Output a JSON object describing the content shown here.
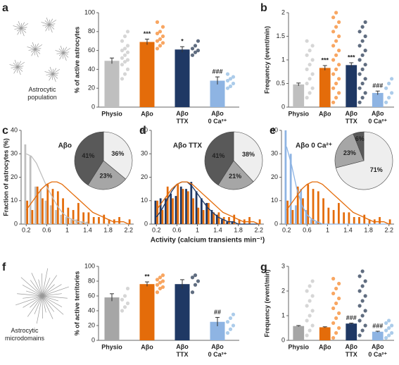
{
  "chart_data": [
    {
      "type": "bar",
      "panel": "a",
      "ylabel": "% of active astrocytes",
      "image_label": "Astrocytic\npopulation",
      "categories": [
        "Physio",
        "Aβo",
        "Aβo\nTTX",
        "Aβo\n0 Ca²⁺"
      ],
      "values": [
        49,
        69,
        61,
        28
      ],
      "errors": [
        3,
        3,
        3,
        4
      ],
      "annotations": [
        null,
        "***",
        "*",
        "###"
      ],
      "colors": [
        "#bfbfbf",
        "#e46c0a",
        "#1f3864",
        "#8eb4e3"
      ],
      "dot_colors": [
        "#cfcfcf",
        "#f79646",
        "#44546a",
        "#9dc3e6"
      ],
      "points": [
        [
          30,
          35,
          40,
          45,
          48,
          50,
          52,
          55,
          58,
          60,
          62,
          65,
          70,
          75,
          80
        ],
        [
          62,
          65,
          68,
          70,
          72,
          75,
          78,
          80,
          85,
          90
        ],
        [
          55,
          58,
          60,
          62,
          65,
          70
        ],
        [
          20,
          22,
          25,
          28,
          30,
          32,
          35
        ]
      ],
      "ylim": [
        0,
        100
      ],
      "yticks": [
        0,
        20,
        40,
        60,
        80,
        100
      ]
    },
    {
      "type": "bar",
      "panel": "b",
      "ylabel": "Frequency (event/min)",
      "categories": [
        "Physio",
        "Aβo",
        "Aβo\nTTX",
        "Aβo\n0 Ca²⁺"
      ],
      "values": [
        0.48,
        0.83,
        0.89,
        0.3
      ],
      "errors": [
        0.03,
        0.05,
        0.05,
        0.04
      ],
      "annotations": [
        null,
        "***",
        "***",
        "###"
      ],
      "colors": [
        "#bfbfbf",
        "#e46c0a",
        "#1f3864",
        "#8eb4e3"
      ],
      "dot_colors": [
        "#cfcfcf",
        "#f79646",
        "#44546a",
        "#9dc3e6"
      ],
      "points": [
        [
          0.2,
          0.3,
          0.4,
          0.5,
          0.6,
          0.7,
          0.8,
          0.9,
          1,
          1.1,
          1.2,
          1.3,
          1.4
        ],
        [
          0.1,
          0.2,
          0.3,
          0.4,
          0.5,
          0.6,
          0.7,
          0.8,
          0.9,
          1,
          1.1,
          1.2,
          1.3,
          1.4,
          1.5,
          1.6,
          1.7,
          1.8,
          1.9,
          2
        ],
        [
          0.1,
          0.2,
          0.3,
          0.4,
          0.5,
          0.6,
          0.7,
          0.8,
          0.9,
          1,
          1.1,
          1.2,
          1.3,
          1.4,
          1.5,
          1.6,
          1.7,
          1.8
        ],
        [
          0.1,
          0.2,
          0.3,
          0.4,
          0.5,
          0.6
        ]
      ],
      "ylim": [
        0,
        2
      ],
      "yticks": [
        0,
        0.5,
        1,
        1.5,
        2
      ]
    },
    {
      "type": "distribution",
      "panel": "c",
      "title": "Aβo",
      "title_color": "#e46c0a",
      "ylabel": "Fraction of astrocytes (%)",
      "x": [
        0.2,
        0.3,
        0.4,
        0.5,
        0.6,
        0.7,
        0.8,
        0.9,
        1,
        1.1,
        1.2,
        1.3,
        1.4,
        1.5,
        1.6,
        1.7,
        1.8,
        1.9,
        2,
        2.1,
        2.2
      ],
      "series": [
        {
          "color": "#bfbfbf",
          "values": [
            34,
            29,
            16,
            15,
            10,
            8,
            6,
            4,
            3,
            2,
            2,
            1,
            1,
            0,
            0,
            0,
            0,
            0,
            0,
            0,
            0
          ],
          "fit": [
            30,
            29,
            26,
            21,
            16,
            12,
            8,
            5,
            3,
            2,
            1,
            1,
            0,
            0,
            0,
            0,
            0,
            0,
            0,
            0,
            0
          ]
        },
        {
          "color": "#e46c0a",
          "values": [
            10,
            6,
            16,
            11,
            17,
            15,
            14,
            11,
            7,
            6,
            9,
            5,
            5,
            3,
            3,
            4,
            2,
            2,
            3,
            0,
            2
          ],
          "fit": [
            6,
            9,
            12,
            15,
            17,
            18,
            18,
            17,
            15,
            13,
            11,
            9,
            7,
            5,
            4,
            3,
            2,
            1,
            1,
            1,
            0
          ]
        }
      ],
      "pie": {
        "values": [
          36,
          23,
          41
        ],
        "value_labels": [
          "36%",
          "23%",
          "41%"
        ],
        "colors": [
          "#eeeeee",
          "#a6a6a6",
          "#595959"
        ]
      },
      "xlim": [
        0.1,
        2.3
      ],
      "xticks": [
        0.2,
        0.6,
        1,
        1.4,
        1.8,
        2.2
      ],
      "ylim": [
        0,
        40
      ],
      "yticks": [
        0,
        10,
        20,
        30,
        40
      ]
    },
    {
      "type": "distribution",
      "panel": "d",
      "title": "Aβo TTX",
      "title_color": "#1f3864",
      "xlabel": "Activity (calcium transients min⁻¹)",
      "x": [
        0.2,
        0.3,
        0.4,
        0.5,
        0.6,
        0.7,
        0.8,
        0.9,
        1,
        1.1,
        1.2,
        1.3,
        1.4,
        1.5,
        1.6,
        1.7,
        1.8,
        1.9,
        2,
        2.1,
        2.2
      ],
      "series": [
        {
          "color": "#1f3864",
          "values": [
            10,
            11,
            11,
            13,
            12,
            16,
            15,
            18,
            14,
            11,
            9,
            6,
            4,
            2,
            1,
            1,
            0,
            0,
            0,
            0,
            0
          ],
          "fit": [
            3,
            6,
            10,
            14,
            17,
            18,
            18,
            16,
            13,
            10,
            7,
            5,
            3,
            2,
            1,
            1,
            0,
            0,
            0,
            0,
            0
          ]
        },
        {
          "color": "#e46c0a",
          "values": [
            10,
            6,
            16,
            11,
            17,
            15,
            14,
            11,
            7,
            6,
            9,
            5,
            5,
            3,
            3,
            4,
            2,
            2,
            3,
            0,
            2
          ],
          "fit": [
            6,
            9,
            12,
            15,
            17,
            18,
            18,
            17,
            15,
            13,
            11,
            9,
            7,
            5,
            4,
            3,
            2,
            1,
            1,
            1,
            0
          ]
        }
      ],
      "pie": {
        "values": [
          38,
          21,
          41
        ],
        "value_labels": [
          "38%",
          "21%",
          "41%"
        ],
        "colors": [
          "#eeeeee",
          "#a6a6a6",
          "#595959"
        ]
      },
      "xlim": [
        0.1,
        2.3
      ],
      "xticks": [
        0.2,
        0.6,
        1,
        1.4,
        1.8,
        2.2
      ],
      "ylim": [
        0,
        40
      ],
      "yticks": [
        0,
        10,
        20,
        30,
        40
      ]
    },
    {
      "type": "distribution",
      "panel": "e",
      "title": "Aβo 0 Ca²⁺",
      "title_color": "#8eb4e3",
      "x": [
        0.2,
        0.3,
        0.4,
        0.5,
        0.6,
        0.7,
        0.8,
        0.9,
        1,
        1.1,
        1.2,
        1.3,
        1.4,
        1.5,
        1.6,
        1.7,
        1.8,
        1.9,
        2,
        2.1,
        2.2
      ],
      "series": [
        {
          "color": "#8eb4e3",
          "values": [
            40,
            30,
            8,
            15,
            6,
            2,
            1,
            0,
            0,
            0,
            0,
            0,
            0,
            0,
            0,
            0,
            0,
            0,
            0,
            0,
            0
          ],
          "fit": [
            33,
            25,
            15,
            8,
            4,
            2,
            1,
            0,
            0,
            0,
            0,
            0,
            0,
            0,
            0,
            0,
            0,
            0,
            0,
            0,
            0
          ]
        },
        {
          "color": "#e46c0a",
          "values": [
            10,
            6,
            16,
            11,
            17,
            15,
            14,
            11,
            7,
            6,
            9,
            5,
            5,
            3,
            3,
            4,
            2,
            2,
            3,
            0,
            2
          ],
          "fit": [
            6,
            9,
            12,
            15,
            17,
            18,
            18,
            17,
            15,
            13,
            11,
            9,
            7,
            5,
            4,
            3,
            2,
            1,
            1,
            1,
            0
          ]
        }
      ],
      "pie": {
        "values": [
          71,
          23,
          6
        ],
        "value_labels": [
          "71%",
          "23%",
          "6%"
        ],
        "colors": [
          "#eeeeee",
          "#a6a6a6",
          "#595959"
        ]
      },
      "xlim": [
        0.1,
        2.3
      ],
      "xticks": [
        0.2,
        0.6,
        1,
        1.4,
        1.8,
        2.2
      ],
      "ylim": [
        0,
        40
      ],
      "yticks": [
        0,
        10,
        20,
        30,
        40
      ]
    },
    {
      "type": "bar",
      "panel": "f",
      "ylabel": "% of active territories",
      "image_label": "Astrocytic\nmicrodomains",
      "categories": [
        "Physio",
        "Aβo",
        "Aβo\nTTX",
        "Aβo\n0 Ca²⁺"
      ],
      "values": [
        58,
        76,
        76,
        25
      ],
      "errors": [
        5,
        3,
        6,
        6
      ],
      "annotations": [
        null,
        "**",
        null,
        "##"
      ],
      "colors": [
        "#a6a6a6",
        "#e46c0a",
        "#1f3864",
        "#8eb4e3"
      ],
      "dot_colors": [
        "#cfcfcf",
        "#f79646",
        "#44546a",
        "#9dc3e6"
      ],
      "points": [
        [
          40,
          45,
          50,
          55,
          60,
          70
        ],
        [
          65,
          70,
          72,
          75,
          78,
          80,
          82,
          85,
          88
        ],
        [
          65,
          75,
          80,
          85,
          88
        ],
        [
          10,
          15,
          20,
          25,
          30,
          35
        ]
      ],
      "ylim": [
        0,
        100
      ],
      "yticks": [
        0,
        20,
        40,
        60,
        80,
        100
      ]
    },
    {
      "type": "bar",
      "panel": "g",
      "ylabel": "Frequency (event/min)",
      "categories": [
        "Physio",
        "Aβo",
        "Aβo\nTTX",
        "Aβo\n0 Ca²⁺"
      ],
      "values": [
        0.58,
        0.53,
        0.68,
        0.35
      ],
      "errors": [
        0.02,
        0.02,
        0.02,
        0.02
      ],
      "annotations": [
        null,
        null,
        "###",
        "###"
      ],
      "colors": [
        "#a6a6a6",
        "#e46c0a",
        "#1f3864",
        "#8eb4e3"
      ],
      "dot_colors": [
        "#cfcfcf",
        "#f79646",
        "#44546a",
        "#9dc3e6"
      ],
      "points": [
        [
          0.2,
          0.4,
          0.6,
          0.8,
          1,
          1.2,
          1.4,
          1.6,
          1.8,
          2,
          2.2,
          2.4
        ],
        [
          0.1,
          0.3,
          0.5,
          0.7,
          0.9,
          1.1,
          1.3,
          1.5,
          1.7,
          1.9,
          2.1,
          2.3,
          2.5
        ],
        [
          0.2,
          0.4,
          0.6,
          0.8,
          1,
          1.2,
          1.4,
          1.6,
          1.8,
          2,
          2.2,
          2.4,
          2.6,
          2.8
        ],
        [
          0.1,
          0.2,
          0.3,
          0.4,
          0.5,
          0.6,
          0.7,
          0.8
        ]
      ],
      "ylim": [
        0,
        3
      ],
      "yticks": [
        0,
        1,
        2,
        3
      ]
    }
  ]
}
